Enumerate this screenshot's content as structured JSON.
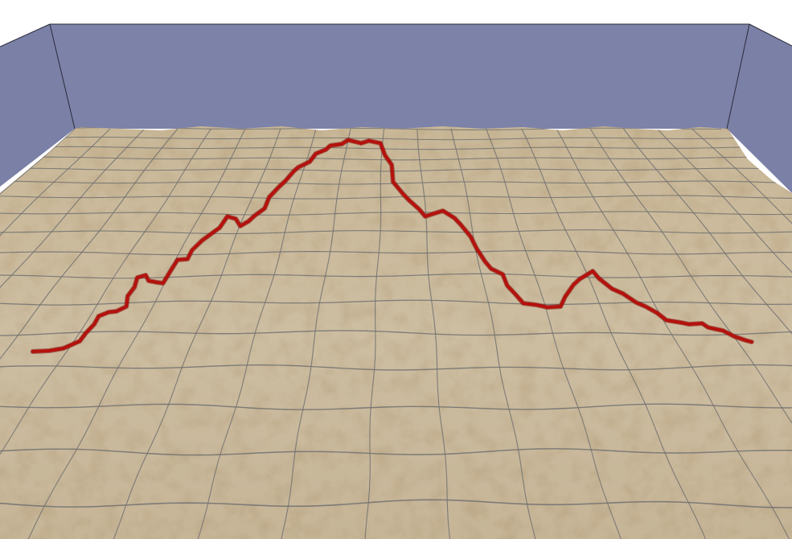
{
  "scene": {
    "colors": {
      "background": "#ffffff",
      "back_wall": "#7d82a9",
      "side_wall": "#7b80a7",
      "wall_edge": "#2b2b38",
      "terrain_light": "#cdbda1",
      "terrain_mid": "#c2b091",
      "terrain_dark": "#a89677",
      "grid_line": "#707070",
      "profile_line": "#b4120d",
      "profile_shadow": "#7a0a06"
    }
  }
}
